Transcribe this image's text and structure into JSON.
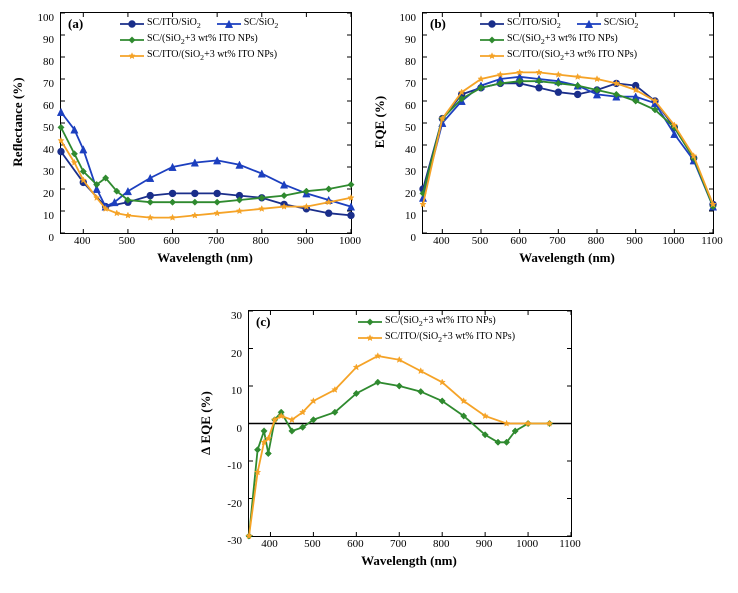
{
  "colors": {
    "blue": "#1c3fbf",
    "navy": "#1a2e8a",
    "green": "#2f8a2f",
    "orange": "#f5a327",
    "axis": "#000000",
    "bg": "#ffffff"
  },
  "font": {
    "axis_label_size": 13,
    "tick_size": 11,
    "legend_size": 10,
    "tag_size": 13
  },
  "series_names": {
    "s1": "SC/ITO/SiO₂",
    "s2": "SC/SiO₂",
    "s3": "SC/(SiO₂+3 wt% ITO NPs)",
    "s4": "SC/ITO/(SiO₂+3 wt% ITO NPs)"
  },
  "markers": {
    "s1": "circle",
    "s2": "triangle",
    "s3": "diamond",
    "s4": "star"
  },
  "panel_a": {
    "tag": "(a)",
    "xlabel": "Wavelength (nm)",
    "ylabel": "Reflectance (%)",
    "xlim": [
      350,
      1000
    ],
    "ylim": [
      0,
      100
    ],
    "xticks": [
      400,
      500,
      600,
      700,
      800,
      900,
      1000
    ],
    "yticks": [
      0,
      10,
      20,
      30,
      40,
      50,
      60,
      70,
      80,
      90,
      100
    ],
    "legend_rows": [
      [
        "s1",
        "s2"
      ],
      [
        "s3"
      ],
      [
        "s4"
      ]
    ],
    "series": {
      "s1": {
        "color": "navy",
        "data": [
          [
            350,
            37
          ],
          [
            400,
            23
          ],
          [
            450,
            12
          ],
          [
            500,
            14
          ],
          [
            550,
            17
          ],
          [
            600,
            18
          ],
          [
            650,
            18
          ],
          [
            700,
            18
          ],
          [
            750,
            17
          ],
          [
            800,
            16
          ],
          [
            850,
            13
          ],
          [
            900,
            11
          ],
          [
            950,
            9
          ],
          [
            1000,
            8
          ]
        ]
      },
      "s2": {
        "color": "blue",
        "data": [
          [
            350,
            55
          ],
          [
            380,
            47
          ],
          [
            400,
            38
          ],
          [
            430,
            20
          ],
          [
            450,
            12
          ],
          [
            470,
            14
          ],
          [
            500,
            19
          ],
          [
            550,
            25
          ],
          [
            600,
            30
          ],
          [
            650,
            32
          ],
          [
            700,
            33
          ],
          [
            750,
            31
          ],
          [
            800,
            27
          ],
          [
            850,
            22
          ],
          [
            900,
            18
          ],
          [
            950,
            15
          ],
          [
            1000,
            12
          ]
        ]
      },
      "s3": {
        "color": "green",
        "data": [
          [
            350,
            48
          ],
          [
            380,
            36
          ],
          [
            400,
            28
          ],
          [
            430,
            22
          ],
          [
            450,
            25
          ],
          [
            475,
            19
          ],
          [
            500,
            15
          ],
          [
            550,
            14
          ],
          [
            600,
            14
          ],
          [
            650,
            14
          ],
          [
            700,
            14
          ],
          [
            750,
            15
          ],
          [
            800,
            16
          ],
          [
            850,
            17
          ],
          [
            900,
            19
          ],
          [
            950,
            20
          ],
          [
            1000,
            22
          ]
        ]
      },
      "s4": {
        "color": "orange",
        "data": [
          [
            350,
            42
          ],
          [
            380,
            32
          ],
          [
            400,
            24
          ],
          [
            430,
            16
          ],
          [
            450,
            11
          ],
          [
            475,
            9
          ],
          [
            500,
            8
          ],
          [
            550,
            7
          ],
          [
            600,
            7
          ],
          [
            650,
            8
          ],
          [
            700,
            9
          ],
          [
            750,
            10
          ],
          [
            800,
            11
          ],
          [
            850,
            12
          ],
          [
            900,
            12
          ],
          [
            950,
            14
          ],
          [
            1000,
            16
          ]
        ]
      }
    }
  },
  "panel_b": {
    "tag": "(b)",
    "xlabel": "Wavelength (nm)",
    "ylabel": "EQE (%)",
    "xlim": [
      350,
      1100
    ],
    "ylim": [
      0,
      100
    ],
    "xticks": [
      400,
      500,
      600,
      700,
      800,
      900,
      1000,
      1100
    ],
    "yticks": [
      0,
      10,
      20,
      30,
      40,
      50,
      60,
      70,
      80,
      90,
      100
    ],
    "legend_rows": [
      [
        "s1",
        "s2"
      ],
      [
        "s3"
      ],
      [
        "s4"
      ]
    ],
    "series": {
      "s1": {
        "color": "navy",
        "data": [
          [
            350,
            20
          ],
          [
            400,
            52
          ],
          [
            450,
            63
          ],
          [
            500,
            66
          ],
          [
            550,
            68
          ],
          [
            600,
            68
          ],
          [
            650,
            66
          ],
          [
            700,
            64
          ],
          [
            750,
            63
          ],
          [
            800,
            65
          ],
          [
            850,
            68
          ],
          [
            900,
            67
          ],
          [
            950,
            60
          ],
          [
            1000,
            48
          ],
          [
            1050,
            34
          ],
          [
            1100,
            13
          ]
        ]
      },
      "s2": {
        "color": "blue",
        "data": [
          [
            350,
            16
          ],
          [
            400,
            50
          ],
          [
            450,
            60
          ],
          [
            500,
            67
          ],
          [
            550,
            70
          ],
          [
            600,
            71
          ],
          [
            650,
            70
          ],
          [
            700,
            69
          ],
          [
            750,
            67
          ],
          [
            800,
            63
          ],
          [
            850,
            62
          ],
          [
            900,
            62
          ],
          [
            950,
            59
          ],
          [
            1000,
            45
          ],
          [
            1050,
            33
          ],
          [
            1100,
            12
          ]
        ]
      },
      "s3": {
        "color": "green",
        "data": [
          [
            350,
            18
          ],
          [
            400,
            52
          ],
          [
            450,
            61
          ],
          [
            500,
            66
          ],
          [
            550,
            68
          ],
          [
            600,
            69
          ],
          [
            650,
            69
          ],
          [
            700,
            68
          ],
          [
            750,
            67
          ],
          [
            800,
            65
          ],
          [
            850,
            63
          ],
          [
            900,
            60
          ],
          [
            950,
            56
          ],
          [
            1000,
            48
          ],
          [
            1050,
            34
          ],
          [
            1100,
            12
          ]
        ]
      },
      "s4": {
        "color": "orange",
        "data": [
          [
            350,
            13
          ],
          [
            400,
            52
          ],
          [
            450,
            64
          ],
          [
            500,
            70
          ],
          [
            550,
            72
          ],
          [
            600,
            73
          ],
          [
            650,
            73
          ],
          [
            700,
            72
          ],
          [
            750,
            71
          ],
          [
            800,
            70
          ],
          [
            850,
            68
          ],
          [
            900,
            65
          ],
          [
            950,
            60
          ],
          [
            1000,
            49
          ],
          [
            1050,
            35
          ],
          [
            1100,
            13
          ]
        ]
      }
    }
  },
  "panel_c": {
    "tag": "(c)",
    "xlabel": "Wavelength (nm)",
    "ylabel": "Δ EQE (%)",
    "xlim": [
      350,
      1100
    ],
    "ylim": [
      -30,
      30
    ],
    "xticks": [
      400,
      500,
      600,
      700,
      800,
      900,
      1000,
      1100
    ],
    "yticks": [
      -30,
      -20,
      -10,
      0,
      10,
      20,
      30
    ],
    "legend_rows": [
      [
        "s3"
      ],
      [
        "s4"
      ]
    ],
    "series": {
      "s3": {
        "color": "green",
        "data": [
          [
            350,
            -30
          ],
          [
            370,
            -7
          ],
          [
            385,
            -2
          ],
          [
            395,
            -8
          ],
          [
            410,
            1
          ],
          [
            425,
            3
          ],
          [
            450,
            -2
          ],
          [
            475,
            -1
          ],
          [
            500,
            1
          ],
          [
            550,
            3
          ],
          [
            600,
            8
          ],
          [
            650,
            11
          ],
          [
            700,
            10
          ],
          [
            750,
            8.5
          ],
          [
            800,
            6
          ],
          [
            850,
            2
          ],
          [
            900,
            -3
          ],
          [
            930,
            -5
          ],
          [
            950,
            -5
          ],
          [
            970,
            -2
          ],
          [
            1000,
            0
          ],
          [
            1050,
            0
          ]
        ]
      },
      "s4": {
        "color": "orange",
        "data": [
          [
            350,
            -30
          ],
          [
            370,
            -13
          ],
          [
            385,
            -5
          ],
          [
            395,
            -4
          ],
          [
            410,
            1
          ],
          [
            425,
            2
          ],
          [
            450,
            1
          ],
          [
            475,
            3
          ],
          [
            500,
            6
          ],
          [
            550,
            9
          ],
          [
            600,
            15
          ],
          [
            650,
            18
          ],
          [
            700,
            17
          ],
          [
            750,
            14
          ],
          [
            800,
            11
          ],
          [
            850,
            6
          ],
          [
            900,
            2
          ],
          [
            950,
            0
          ],
          [
            1000,
            0
          ],
          [
            1050,
            0
          ]
        ]
      }
    }
  }
}
